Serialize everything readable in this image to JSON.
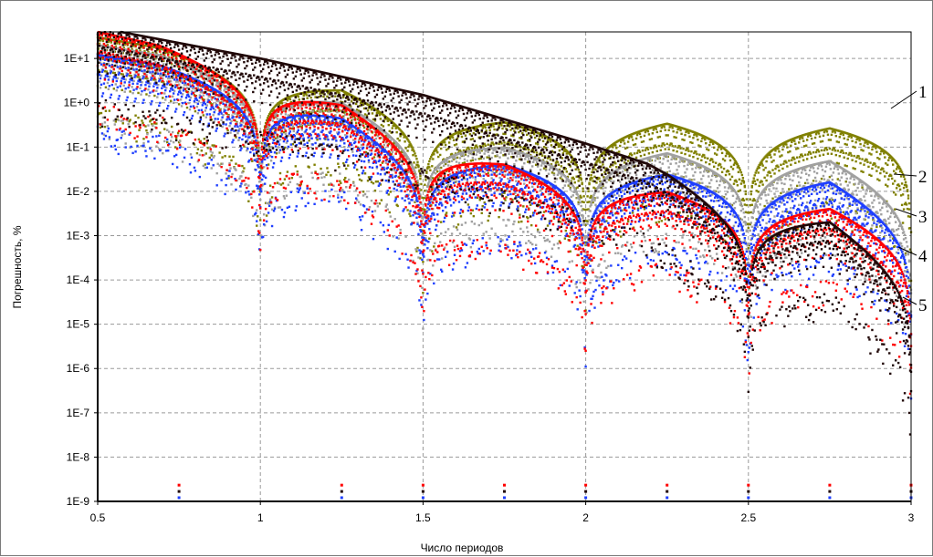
{
  "chart_data": {
    "type": "scatter",
    "xlabel": "Число периодов",
    "ylabel": "Погрешность, %",
    "xlim": [
      0.5,
      3.0
    ],
    "ylim_log10": [
      -9,
      1.6
    ],
    "y_scale": "log",
    "grid": true,
    "x_ticks": [
      {
        "value": 0.5,
        "label": "0.5"
      },
      {
        "value": 1.0,
        "label": "1"
      },
      {
        "value": 1.5,
        "label": "1.5"
      },
      {
        "value": 2.0,
        "label": "2"
      },
      {
        "value": 2.5,
        "label": "2.5"
      },
      {
        "value": 3.0,
        "label": "3"
      }
    ],
    "y_ticks": [
      {
        "value": 10.0,
        "label": "1E+1"
      },
      {
        "value": 1.0,
        "label": "1E+0"
      },
      {
        "value": 0.1,
        "label": "1E-1"
      },
      {
        "value": 0.01,
        "label": "1E-2"
      },
      {
        "value": 0.001,
        "label": "1E-3"
      },
      {
        "value": 0.0001,
        "label": "1E-4"
      },
      {
        "value": 1e-05,
        "label": "1E-5"
      },
      {
        "value": 1e-06,
        "label": "1E-6"
      },
      {
        "value": 1e-07,
        "label": "1E-7"
      },
      {
        "value": 1e-08,
        "label": "1E-8"
      },
      {
        "value": 1e-09,
        "label": "1E-9"
      }
    ],
    "series": [
      {
        "label": "1",
        "color": "#808000",
        "envelope": [
          [
            0.5,
            30
          ],
          [
            1.0,
            7
          ],
          [
            1.5,
            0.8
          ],
          [
            1.75,
            0.45
          ],
          [
            2.25,
            0.42
          ],
          [
            2.75,
            0.33
          ],
          [
            3.0,
            0.3
          ]
        ],
        "min_at": [
          1.0,
          1.5,
          2.0,
          2.5,
          3.0
        ]
      },
      {
        "label": "2",
        "color": "#a0a0a0",
        "envelope": [
          [
            0.5,
            20
          ],
          [
            1.0,
            5
          ],
          [
            1.5,
            0.3
          ],
          [
            1.75,
            0.12
          ],
          [
            2.25,
            0.09
          ],
          [
            2.75,
            0.06
          ],
          [
            3.0,
            0.015
          ]
        ],
        "min_at": [
          1.0,
          1.5,
          2.0,
          2.5,
          3.0
        ]
      },
      {
        "label": "3",
        "color": "#1f3fff",
        "envelope": [
          [
            0.5,
            12
          ],
          [
            1.0,
            3
          ],
          [
            1.5,
            0.1
          ],
          [
            1.75,
            0.05
          ],
          [
            2.25,
            0.03
          ],
          [
            2.75,
            0.02
          ],
          [
            3.0,
            0.004
          ]
        ],
        "min_at": [
          1.0,
          1.5,
          2.0,
          2.5,
          3.0
        ]
      },
      {
        "label": "4",
        "color": "#ff0000",
        "envelope": [
          [
            0.5,
            40
          ],
          [
            1.0,
            6
          ],
          [
            1.5,
            0.2
          ],
          [
            1.75,
            0.05
          ],
          [
            2.25,
            0.012
          ],
          [
            2.75,
            0.005
          ],
          [
            3.0,
            0.0015
          ]
        ],
        "min_at": [
          1.0,
          1.5,
          2.0,
          2.5,
          3.0
        ]
      },
      {
        "label": "5",
        "color": "#200808",
        "envelope": [
          [
            0.5,
            50
          ],
          [
            1.0,
            10
          ],
          [
            1.5,
            1.5
          ],
          [
            2.0,
            0.12
          ],
          [
            2.25,
            0.03
          ],
          [
            2.5,
            0.005
          ],
          [
            2.75,
            0.0025
          ],
          [
            3.0,
            0.0003
          ]
        ],
        "min_at": [
          2.5,
          3.0
        ]
      }
    ],
    "baseline_marker_x": [
      0.75,
      1.25,
      1.5,
      1.75,
      2.0,
      2.25,
      2.5,
      2.75,
      3.0
    ]
  }
}
